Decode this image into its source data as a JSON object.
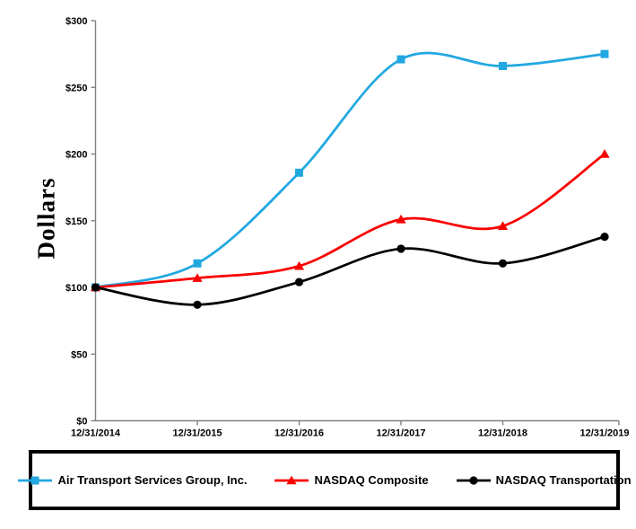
{
  "chart_data": {
    "type": "line",
    "title": "",
    "ylabel": "Dollars",
    "xlabel": "",
    "grid": false,
    "legend_position": "bottom-box",
    "axis_color": "#808080",
    "ylim": [
      0,
      300
    ],
    "y_ticks": [
      {
        "label": "$0",
        "value": 0
      },
      {
        "label": "$50",
        "value": 50
      },
      {
        "label": "$100",
        "value": 100
      },
      {
        "label": "$150",
        "value": 150
      },
      {
        "label": "$200",
        "value": 200
      },
      {
        "label": "$250",
        "value": 250
      },
      {
        "label": "$300",
        "value": 300
      }
    ],
    "categories": [
      "12/31/2014",
      "12/31/2015",
      "12/31/2016",
      "12/31/2017",
      "12/31/2018",
      "12/31/2019"
    ],
    "series": [
      {
        "name": "Air Transport Services Group, Inc.",
        "color": "#21A8E0",
        "marker": "square",
        "values": [
          100,
          118,
          186,
          271,
          266,
          275
        ]
      },
      {
        "name": "NASDAQ Composite",
        "color": "#FA0000",
        "marker": "triangle",
        "values": [
          100,
          107,
          116,
          151,
          146,
          200
        ]
      },
      {
        "name": "NASDAQ Transportation",
        "color": "#000000",
        "marker": "circle",
        "values": [
          100,
          87,
          104,
          129,
          118,
          138
        ]
      }
    ]
  }
}
